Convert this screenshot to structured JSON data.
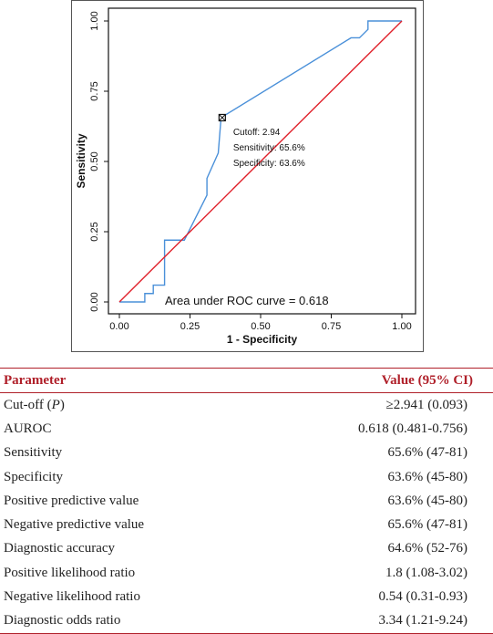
{
  "chart_data": {
    "type": "line",
    "xlabel": "1 - Specificity",
    "ylabel": "Sensitivity",
    "xlim": [
      0,
      1
    ],
    "ylim": [
      0,
      1
    ],
    "x_ticks": [
      "0.00",
      "0.25",
      "0.50",
      "0.75",
      "1.00"
    ],
    "y_ticks": [
      "0.00",
      "0.25",
      "0.50",
      "0.75",
      "1.00"
    ],
    "grid": false,
    "series": [
      {
        "color": "#4a90d9",
        "points": [
          [
            0.0,
            0.0
          ],
          [
            0.09,
            0.0
          ],
          [
            0.09,
            0.03
          ],
          [
            0.12,
            0.03
          ],
          [
            0.12,
            0.06
          ],
          [
            0.16,
            0.06
          ],
          [
            0.16,
            0.22
          ],
          [
            0.23,
            0.22
          ],
          [
            0.31,
            0.38
          ],
          [
            0.31,
            0.44
          ],
          [
            0.35,
            0.53
          ],
          [
            0.36,
            0.656
          ],
          [
            0.82,
            0.94
          ],
          [
            0.85,
            0.94
          ],
          [
            0.88,
            0.97
          ],
          [
            0.88,
            1.0
          ],
          [
            1.0,
            1.0
          ]
        ]
      },
      {
        "color": "#e0202a",
        "points": [
          [
            0,
            0
          ],
          [
            1,
            1
          ]
        ]
      }
    ],
    "cutoff_point": {
      "x": 0.364,
      "y": 0.656
    },
    "annotations": {
      "cutoff": "Cutoff: 2.94",
      "sensitivity": "Sensitivity: 65.6%",
      "specificity": "Specificity: 63.6%",
      "auc": "Area under ROC curve =  0.618"
    }
  },
  "table": {
    "headers": [
      "Parameter",
      "Value (95% CI)"
    ],
    "rows": [
      {
        "param": "Cut-off (",
        "param_italic": "P",
        "param_tail": ")",
        "value": "≥2.941 (0.093)"
      },
      {
        "param": "AUROC",
        "value": "0.618 (0.481-0.756)"
      },
      {
        "param": "Sensitivity",
        "value": "65.6% (47-81)"
      },
      {
        "param": "Specificity",
        "value": "63.6% (45-80)"
      },
      {
        "param": "Positive predictive value",
        "value": "63.6% (45-80)"
      },
      {
        "param": "Negative predictive value",
        "value": "65.6% (47-81)"
      },
      {
        "param": "Diagnostic accuracy",
        "value": "64.6% (52-76)"
      },
      {
        "param": "Positive likelihood ratio",
        "value": "1.8 (1.08-3.02)"
      },
      {
        "param": "Negative likelihood ratio",
        "value": "0.54 (0.31-0.93)"
      },
      {
        "param": "Diagnostic odds ratio",
        "value": "3.34 (1.21-9.24)"
      }
    ]
  }
}
